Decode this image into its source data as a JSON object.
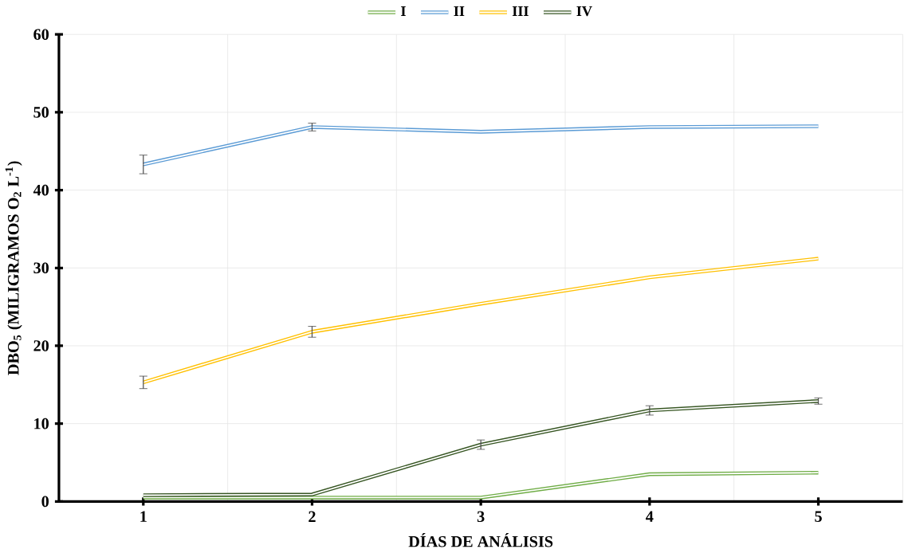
{
  "chart_data": {
    "type": "line",
    "xlabel": "DÍAS DE ANÁLISIS",
    "ylabel": "DBO$_{5}$ (MILIGRAMOS  O$_{2}$ L$^{-1}$)",
    "categories": [
      "1",
      "2",
      "3",
      "4",
      "5"
    ],
    "series": [
      {
        "name": "I",
        "color": "#70ad47",
        "values": [
          0.5,
          0.5,
          0.5,
          3.5,
          3.7
        ],
        "errors": [
          null,
          null,
          null,
          null,
          null
        ]
      },
      {
        "name": "II",
        "color": "#5b9bd5",
        "values": [
          43.3,
          48.1,
          47.5,
          48.1,
          48.2
        ],
        "errors": [
          1.2,
          0.5,
          null,
          null,
          null
        ]
      },
      {
        "name": "III",
        "color": "#ffc000",
        "values": [
          15.3,
          21.8,
          25.4,
          28.8,
          31.2
        ],
        "errors": [
          0.8,
          0.7,
          null,
          null,
          null
        ]
      },
      {
        "name": "IV",
        "color": "#375623",
        "values": [
          0.8,
          0.9,
          7.3,
          11.7,
          12.9
        ],
        "errors": [
          null,
          null,
          0.6,
          0.6,
          0.4
        ]
      }
    ],
    "ylim": [
      0,
      60
    ],
    "yticks": [
      0,
      10,
      20,
      30,
      40,
      50,
      60
    ],
    "grid": true,
    "legend": "top",
    "marker": "none",
    "line_style": "solid"
  }
}
